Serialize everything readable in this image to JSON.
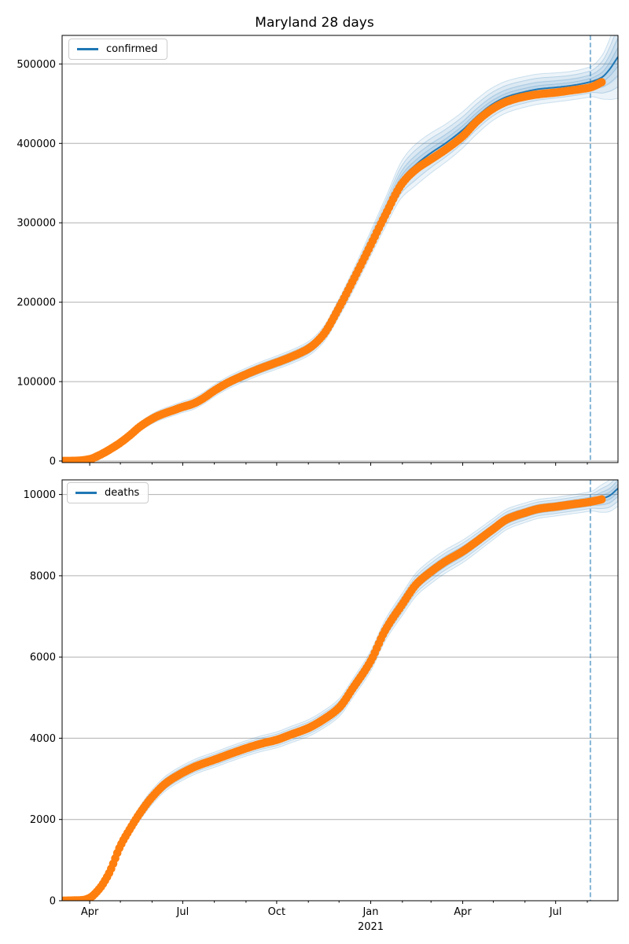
{
  "figure": {
    "title": "Maryland 28 days"
  },
  "colors": {
    "observed": "#ff7f0e",
    "fit_line": "#1f77b4",
    "band_fill": "rgba(31,119,180,0.08)",
    "sample_line": "rgba(31,119,180,0.20)",
    "dashed_line": "rgba(31,119,180,0.55)",
    "grid": "#b0b0b0",
    "spine": "#000000",
    "tick_label": "#000000"
  },
  "x_axis": {
    "range": [
      "2020-03-05",
      "2021-08-31"
    ],
    "months_major": [
      {
        "date": "2020-04-01",
        "label": "Apr"
      },
      {
        "date": "2020-07-01",
        "label": "Jul"
      },
      {
        "date": "2020-10-01",
        "label": "Oct"
      },
      {
        "date": "2021-01-01",
        "label": "Jan"
      },
      {
        "date": "2021-04-01",
        "label": "Apr"
      },
      {
        "date": "2021-07-01",
        "label": "Jul"
      }
    ],
    "year_label": {
      "date": "2021-01-01",
      "label": "2021"
    }
  },
  "forecast": {
    "start_date": "2021-08-04",
    "horizon_days": 28,
    "observed_end_date": "2021-08-15"
  },
  "chart_data": [
    {
      "type": "line",
      "title": "Maryland 28 days",
      "legend_label": "confirmed",
      "legend_position": "upper-left",
      "grid": "horizontal-y",
      "ylim": [
        -2000,
        536000
      ],
      "yticks": [
        0,
        100000,
        200000,
        300000,
        400000,
        500000
      ],
      "xticks": [
        "Apr",
        "Jul",
        "Oct",
        "Jan",
        "Apr",
        "Jul"
      ],
      "vline_date": "2021-08-04",
      "series": [
        {
          "name": "confirmed observed",
          "style": "scatter",
          "color": "#ff7f0e",
          "points": [
            [
              "2020-03-05",
              0
            ],
            [
              "2020-03-20",
              300
            ],
            [
              "2020-04-01",
              2300
            ],
            [
              "2020-04-10",
              7000
            ],
            [
              "2020-04-20",
              14000
            ],
            [
              "2020-05-01",
              23000
            ],
            [
              "2020-05-10",
              32000
            ],
            [
              "2020-05-20",
              43000
            ],
            [
              "2020-06-01",
              53000
            ],
            [
              "2020-06-10",
              58500
            ],
            [
              "2020-06-20",
              63000
            ],
            [
              "2020-07-01",
              68000
            ],
            [
              "2020-07-10",
              71500
            ],
            [
              "2020-07-20",
              78000
            ],
            [
              "2020-08-01",
              88500
            ],
            [
              "2020-08-15",
              99000
            ],
            [
              "2020-09-01",
              109000
            ],
            [
              "2020-09-15",
              116500
            ],
            [
              "2020-10-01",
              124000
            ],
            [
              "2020-10-15",
              131000
            ],
            [
              "2020-11-01",
              141500
            ],
            [
              "2020-11-15",
              158000
            ],
            [
              "2020-12-01",
              193000
            ],
            [
              "2020-12-15",
              228000
            ],
            [
              "2021-01-01",
              272000
            ],
            [
              "2021-01-15",
              309000
            ],
            [
              "2021-02-01",
              350000
            ],
            [
              "2021-02-15",
              368000
            ],
            [
              "2021-03-01",
              380000
            ],
            [
              "2021-03-15",
              392000
            ],
            [
              "2021-04-01",
              409000
            ],
            [
              "2021-04-15",
              428000
            ],
            [
              "2021-05-01",
              444000
            ],
            [
              "2021-05-15",
              453000
            ],
            [
              "2021-06-01",
              459000
            ],
            [
              "2021-06-15",
              462000
            ],
            [
              "2021-07-01",
              464000
            ],
            [
              "2021-07-15",
              466500
            ],
            [
              "2021-08-04",
              470500
            ],
            [
              "2021-08-15",
              477000
            ]
          ]
        },
        {
          "name": "confirmed fit and forecast",
          "style": "line",
          "color": "#1f77b4",
          "points": [
            [
              "2020-03-05",
              0
            ],
            [
              "2020-03-20",
              300
            ],
            [
              "2020-04-01",
              2300
            ],
            [
              "2020-04-10",
              7000
            ],
            [
              "2020-04-20",
              14000
            ],
            [
              "2020-05-01",
              23000
            ],
            [
              "2020-05-10",
              32000
            ],
            [
              "2020-05-20",
              43000
            ],
            [
              "2020-06-01",
              53000
            ],
            [
              "2020-06-10",
              58500
            ],
            [
              "2020-06-20",
              63000
            ],
            [
              "2020-07-01",
              68000
            ],
            [
              "2020-07-10",
              71500
            ],
            [
              "2020-07-20",
              78000
            ],
            [
              "2020-08-01",
              88500
            ],
            [
              "2020-08-15",
              99000
            ],
            [
              "2020-09-01",
              109000
            ],
            [
              "2020-09-15",
              116500
            ],
            [
              "2020-10-01",
              124000
            ],
            [
              "2020-10-15",
              131000
            ],
            [
              "2020-11-01",
              141500
            ],
            [
              "2020-11-15",
              158000
            ],
            [
              "2020-12-01",
              193000
            ],
            [
              "2020-12-15",
              228000
            ],
            [
              "2021-01-01",
              274000
            ],
            [
              "2021-01-15",
              312000
            ],
            [
              "2021-02-01",
              356000
            ],
            [
              "2021-02-15",
              374000
            ],
            [
              "2021-03-01",
              388000
            ],
            [
              "2021-03-15",
              400000
            ],
            [
              "2021-04-01",
              417000
            ],
            [
              "2021-04-15",
              434000
            ],
            [
              "2021-05-01",
              450000
            ],
            [
              "2021-05-15",
              459000
            ],
            [
              "2021-06-01",
              465000
            ],
            [
              "2021-06-15",
              468500
            ],
            [
              "2021-07-01",
              470500
            ],
            [
              "2021-07-15",
              472500
            ],
            [
              "2021-08-04",
              477500
            ],
            [
              "2021-08-15",
              483000
            ],
            [
              "2021-08-22",
              492000
            ],
            [
              "2021-08-31",
              509000
            ]
          ]
        },
        {
          "name": "uncertainty sigma",
          "style": "band",
          "color": "#1f77b4",
          "points": [
            [
              "2020-03-05",
              1200
            ],
            [
              "2020-05-01",
              2500
            ],
            [
              "2020-07-01",
              3500
            ],
            [
              "2020-09-01",
              4000
            ],
            [
              "2020-11-01",
              4500
            ],
            [
              "2020-12-15",
              6500
            ],
            [
              "2021-01-15",
              9000
            ],
            [
              "2021-02-15",
              13000
            ],
            [
              "2021-03-15",
              12000
            ],
            [
              "2021-04-15",
              11000
            ],
            [
              "2021-05-15",
              10000
            ],
            [
              "2021-06-15",
              9500
            ],
            [
              "2021-07-15",
              9000
            ],
            [
              "2021-08-04",
              9500
            ],
            [
              "2021-08-15",
              13500
            ],
            [
              "2021-08-31",
              26000
            ]
          ]
        }
      ]
    },
    {
      "type": "line",
      "title": "",
      "legend_label": "deaths",
      "legend_position": "upper-left",
      "grid": "horizontal-y",
      "ylim": [
        0,
        10360
      ],
      "yticks": [
        0,
        2000,
        4000,
        6000,
        8000,
        10000
      ],
      "xticks": [
        "Apr",
        "Jul",
        "Oct",
        "Jan",
        "Apr",
        "Jul"
      ],
      "vline_date": "2021-08-04",
      "series": [
        {
          "name": "deaths observed",
          "style": "scatter",
          "color": "#ff7f0e",
          "points": [
            [
              "2020-03-05",
              0
            ],
            [
              "2020-03-25",
              15
            ],
            [
              "2020-04-01",
              70
            ],
            [
              "2020-04-10",
              280
            ],
            [
              "2020-04-20",
              680
            ],
            [
              "2020-05-01",
              1350
            ],
            [
              "2020-05-10",
              1750
            ],
            [
              "2020-05-20",
              2150
            ],
            [
              "2020-06-01",
              2550
            ],
            [
              "2020-06-15",
              2900
            ],
            [
              "2020-07-01",
              3150
            ],
            [
              "2020-07-15",
              3320
            ],
            [
              "2020-08-01",
              3470
            ],
            [
              "2020-08-15",
              3600
            ],
            [
              "2020-09-01",
              3750
            ],
            [
              "2020-09-15",
              3860
            ],
            [
              "2020-10-01",
              3960
            ],
            [
              "2020-10-15",
              4090
            ],
            [
              "2020-11-01",
              4250
            ],
            [
              "2020-11-15",
              4450
            ],
            [
              "2020-12-01",
              4750
            ],
            [
              "2020-12-15",
              5250
            ],
            [
              "2021-01-01",
              5900
            ],
            [
              "2021-01-15",
              6650
            ],
            [
              "2021-02-01",
              7300
            ],
            [
              "2021-02-15",
              7800
            ],
            [
              "2021-03-01",
              8100
            ],
            [
              "2021-03-15",
              8350
            ],
            [
              "2021-04-01",
              8600
            ],
            [
              "2021-04-15",
              8850
            ],
            [
              "2021-05-01",
              9150
            ],
            [
              "2021-05-15",
              9400
            ],
            [
              "2021-06-01",
              9550
            ],
            [
              "2021-06-15",
              9650
            ],
            [
              "2021-07-01",
              9700
            ],
            [
              "2021-07-15",
              9750
            ],
            [
              "2021-08-04",
              9820
            ],
            [
              "2021-08-15",
              9880
            ]
          ]
        },
        {
          "name": "deaths fit and forecast",
          "style": "line",
          "color": "#1f77b4",
          "points": [
            [
              "2020-03-05",
              0
            ],
            [
              "2020-03-25",
              15
            ],
            [
              "2020-04-01",
              70
            ],
            [
              "2020-04-10",
              280
            ],
            [
              "2020-04-20",
              680
            ],
            [
              "2020-05-01",
              1350
            ],
            [
              "2020-05-10",
              1750
            ],
            [
              "2020-05-20",
              2150
            ],
            [
              "2020-06-01",
              2550
            ],
            [
              "2020-06-15",
              2900
            ],
            [
              "2020-07-01",
              3150
            ],
            [
              "2020-07-15",
              3320
            ],
            [
              "2020-08-01",
              3470
            ],
            [
              "2020-08-15",
              3600
            ],
            [
              "2020-09-01",
              3750
            ],
            [
              "2020-09-15",
              3860
            ],
            [
              "2020-10-01",
              3960
            ],
            [
              "2020-10-15",
              4090
            ],
            [
              "2020-11-01",
              4250
            ],
            [
              "2020-11-15",
              4450
            ],
            [
              "2020-12-01",
              4750
            ],
            [
              "2020-12-15",
              5250
            ],
            [
              "2021-01-01",
              5900
            ],
            [
              "2021-01-15",
              6650
            ],
            [
              "2021-02-01",
              7300
            ],
            [
              "2021-02-15",
              7800
            ],
            [
              "2021-03-01",
              8100
            ],
            [
              "2021-03-15",
              8350
            ],
            [
              "2021-04-01",
              8600
            ],
            [
              "2021-04-15",
              8850
            ],
            [
              "2021-05-01",
              9150
            ],
            [
              "2021-05-15",
              9400
            ],
            [
              "2021-06-01",
              9550
            ],
            [
              "2021-06-15",
              9650
            ],
            [
              "2021-07-01",
              9700
            ],
            [
              "2021-07-15",
              9750
            ],
            [
              "2021-08-04",
              9830
            ],
            [
              "2021-08-15",
              9900
            ],
            [
              "2021-08-22",
              9960
            ],
            [
              "2021-08-31",
              10150
            ]
          ]
        },
        {
          "name": "uncertainty sigma",
          "style": "band",
          "color": "#1f77b4",
          "points": [
            [
              "2020-03-05",
              15
            ],
            [
              "2020-04-15",
              50
            ],
            [
              "2020-06-01",
              90
            ],
            [
              "2020-09-01",
              95
            ],
            [
              "2020-12-01",
              110
            ],
            [
              "2021-01-15",
              130
            ],
            [
              "2021-03-01",
              145
            ],
            [
              "2021-05-01",
              130
            ],
            [
              "2021-07-01",
              115
            ],
            [
              "2021-08-04",
              120
            ],
            [
              "2021-08-15",
              170
            ],
            [
              "2021-08-31",
              220
            ]
          ]
        }
      ]
    }
  ]
}
